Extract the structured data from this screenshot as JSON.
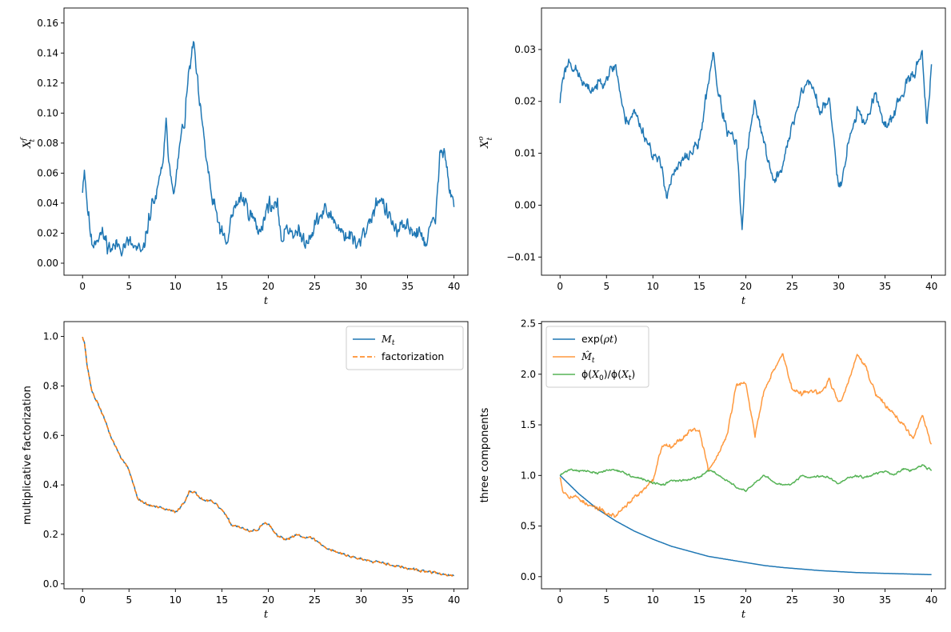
{
  "figure": {
    "layout": "2x2 subplots"
  },
  "chart_data": [
    {
      "id": "top_left",
      "type": "line",
      "xlabel": "t",
      "ylabel": {
        "base": "X",
        "sub": "t",
        "sup": "f"
      },
      "xlim": [
        -2,
        41.5
      ],
      "ylim": [
        -0.008,
        0.17
      ],
      "xticks": [
        0,
        5,
        10,
        15,
        20,
        25,
        30,
        35,
        40
      ],
      "yticks": [
        0.0,
        0.02,
        0.04,
        0.06,
        0.08,
        0.1,
        0.12,
        0.14,
        0.16
      ],
      "ytick_labels": [
        "0.00",
        "0.02",
        "0.04",
        "0.06",
        "0.08",
        "0.10",
        "0.12",
        "0.14",
        "0.16"
      ],
      "legend": null,
      "series": [
        {
          "color": "#1f77b4",
          "style": "solid",
          "noise": 0.011,
          "seed": 11,
          "x": [
            0,
            0.2,
            0.5,
            1,
            1.5,
            2,
            3,
            4,
            5,
            6,
            6.5,
            7,
            7.5,
            8,
            8.5,
            9,
            9.5,
            10,
            10.5,
            11,
            11.5,
            12,
            12.5,
            13,
            14,
            15,
            15.5,
            16,
            17,
            18,
            19,
            19.5,
            20,
            21,
            21.5,
            22,
            23,
            24,
            25,
            26,
            27,
            28,
            29,
            29.5,
            30,
            31,
            32,
            33,
            34,
            35,
            36,
            37,
            38,
            38.5,
            39,
            39.5,
            40
          ],
          "y": [
            0.05,
            0.065,
            0.04,
            0.012,
            0.018,
            0.02,
            0.01,
            0.012,
            0.013,
            0.008,
            0.005,
            0.025,
            0.04,
            0.045,
            0.06,
            0.09,
            0.06,
            0.05,
            0.08,
            0.095,
            0.13,
            0.145,
            0.11,
            0.085,
            0.04,
            0.02,
            0.01,
            0.03,
            0.045,
            0.035,
            0.02,
            0.03,
            0.04,
            0.035,
            0.015,
            0.025,
            0.02,
            0.015,
            0.025,
            0.035,
            0.03,
            0.02,
            0.018,
            0.01,
            0.015,
            0.03,
            0.045,
            0.03,
            0.02,
            0.025,
            0.02,
            0.015,
            0.03,
            0.07,
            0.08,
            0.05,
            0.04
          ]
        }
      ]
    },
    {
      "id": "top_right",
      "type": "line",
      "xlabel": "t",
      "ylabel": {
        "base": "X",
        "sub": "t",
        "sup": "o"
      },
      "xlim": [
        -2,
        41.5
      ],
      "ylim": [
        -0.0135,
        0.038
      ],
      "xticks": [
        0,
        5,
        10,
        15,
        20,
        25,
        30,
        35,
        40
      ],
      "yticks": [
        -0.01,
        0.0,
        0.01,
        0.02,
        0.03
      ],
      "ytick_labels": [
        "−0.01",
        "0.00",
        "0.01",
        "0.02",
        "0.03"
      ],
      "legend": null,
      "series": [
        {
          "color": "#1f77b4",
          "style": "solid",
          "noise": 0.0022,
          "seed": 23,
          "x": [
            0,
            0.3,
            1,
            2,
            3,
            4,
            5,
            6,
            7,
            8,
            9,
            10,
            11,
            11.5,
            12,
            13,
            14,
            15,
            16,
            16.5,
            17,
            18,
            19,
            19.6,
            20,
            21,
            22,
            23,
            24,
            25,
            26,
            27,
            28,
            29,
            30,
            30.5,
            31,
            32,
            33,
            34,
            35,
            36,
            37,
            38,
            39,
            39.5,
            40
          ],
          "y": [
            0.02,
            0.025,
            0.028,
            0.025,
            0.022,
            0.023,
            0.025,
            0.027,
            0.016,
            0.018,
            0.014,
            0.01,
            0.007,
            0.002,
            0.005,
            0.008,
            0.01,
            0.012,
            0.024,
            0.03,
            0.022,
            0.014,
            0.012,
            -0.005,
            0.008,
            0.02,
            0.012,
            0.004,
            0.008,
            0.015,
            0.022,
            0.024,
            0.018,
            0.02,
            0.004,
            0.006,
            0.012,
            0.018,
            0.016,
            0.022,
            0.014,
            0.018,
            0.022,
            0.025,
            0.03,
            0.015,
            0.026
          ]
        }
      ]
    },
    {
      "id": "bottom_left",
      "type": "line",
      "xlabel": "t",
      "ylabel": {
        "text": "multiplicative factorization"
      },
      "xlim": [
        -2,
        41.5
      ],
      "ylim": [
        -0.02,
        1.06
      ],
      "xticks": [
        0,
        5,
        10,
        15,
        20,
        25,
        30,
        35,
        40
      ],
      "yticks": [
        0.0,
        0.2,
        0.4,
        0.6,
        0.8,
        1.0
      ],
      "ytick_labels": [
        "0.0",
        "0.2",
        "0.4",
        "0.6",
        "0.8",
        "1.0"
      ],
      "legend": {
        "loc": "upper right",
        "entries": [
          "M_t",
          "factorization"
        ]
      },
      "series": [
        {
          "name": "M_t",
          "color": "#1f77b4",
          "style": "solid",
          "noise": 0.01,
          "seed": 37,
          "x": [
            0,
            0.2,
            0.5,
            1,
            2,
            3,
            4,
            5,
            6,
            7,
            8,
            9,
            10,
            11,
            11.5,
            12,
            13,
            14,
            15,
            16,
            17,
            18,
            19,
            19.5,
            20,
            21,
            22,
            23,
            24,
            25,
            26,
            28,
            30,
            32,
            34,
            36,
            38,
            40
          ],
          "y": [
            1.0,
            0.98,
            0.88,
            0.78,
            0.7,
            0.6,
            0.52,
            0.46,
            0.34,
            0.32,
            0.31,
            0.3,
            0.29,
            0.33,
            0.38,
            0.37,
            0.34,
            0.33,
            0.3,
            0.24,
            0.23,
            0.21,
            0.22,
            0.25,
            0.24,
            0.19,
            0.18,
            0.2,
            0.19,
            0.18,
            0.15,
            0.12,
            0.1,
            0.09,
            0.07,
            0.055,
            0.045,
            0.03
          ]
        },
        {
          "name": "factorization",
          "color": "#ff7f0e",
          "style": "dashed",
          "noise": 0.01,
          "seed": 37,
          "x": [
            0,
            0.2,
            0.5,
            1,
            2,
            3,
            4,
            5,
            6,
            7,
            8,
            9,
            10,
            11,
            11.5,
            12,
            13,
            14,
            15,
            16,
            17,
            18,
            19,
            19.5,
            20,
            21,
            22,
            23,
            24,
            25,
            26,
            28,
            30,
            32,
            34,
            36,
            38,
            40
          ],
          "y": [
            1.0,
            0.98,
            0.88,
            0.78,
            0.7,
            0.6,
            0.52,
            0.46,
            0.34,
            0.32,
            0.31,
            0.3,
            0.29,
            0.33,
            0.38,
            0.37,
            0.34,
            0.33,
            0.3,
            0.24,
            0.23,
            0.21,
            0.22,
            0.25,
            0.24,
            0.19,
            0.18,
            0.2,
            0.19,
            0.18,
            0.15,
            0.12,
            0.1,
            0.09,
            0.07,
            0.055,
            0.045,
            0.03
          ]
        }
      ]
    },
    {
      "id": "bottom_right",
      "type": "line",
      "xlabel": "t",
      "ylabel": {
        "text": "three components"
      },
      "xlim": [
        -2,
        41.5
      ],
      "ylim": [
        -0.12,
        2.52
      ],
      "xticks": [
        0,
        5,
        10,
        15,
        20,
        25,
        30,
        35,
        40
      ],
      "yticks": [
        0.0,
        0.5,
        1.0,
        1.5,
        2.0,
        2.5
      ],
      "ytick_labels": [
        "0.0",
        "0.5",
        "1.0",
        "1.5",
        "2.0",
        "2.5"
      ],
      "legend": {
        "loc": "upper left",
        "entries": [
          "exp(ρt)",
          "M̂_t",
          "ϕ(X_0)/ϕ(X_t)"
        ]
      },
      "series": [
        {
          "name": "exp(ρt)",
          "color": "#1f77b4",
          "style": "solid",
          "noise": 0,
          "seed": 1,
          "x": [
            0,
            2,
            4,
            6,
            8,
            10,
            12,
            14,
            16,
            18,
            20,
            22,
            24,
            26,
            28,
            30,
            32,
            34,
            36,
            38,
            40
          ],
          "y": [
            1.0,
            0.82,
            0.67,
            0.55,
            0.45,
            0.37,
            0.3,
            0.25,
            0.2,
            0.17,
            0.14,
            0.11,
            0.09,
            0.075,
            0.06,
            0.05,
            0.04,
            0.035,
            0.03,
            0.025,
            0.02
          ]
        },
        {
          "name": "M̂_t",
          "color": "#ff7f0e",
          "style": "solid",
          "opacity": 0.8,
          "noise": 0.04,
          "seed": 53,
          "x": [
            0,
            0.3,
            1,
            2,
            3,
            4,
            5,
            6,
            7,
            8,
            9,
            10,
            11,
            12,
            13,
            14,
            15,
            16,
            17,
            18,
            19,
            20,
            21,
            22,
            23,
            24,
            25,
            26,
            27,
            28,
            29,
            30,
            31,
            32,
            33,
            34,
            35,
            36,
            37,
            38,
            39,
            40
          ],
          "y": [
            1.0,
            0.85,
            0.8,
            0.78,
            0.7,
            0.68,
            0.62,
            0.6,
            0.7,
            0.78,
            0.85,
            0.95,
            1.3,
            1.3,
            1.35,
            1.45,
            1.45,
            1.05,
            1.2,
            1.4,
            1.9,
            1.9,
            1.4,
            1.85,
            2.05,
            2.2,
            1.85,
            1.8,
            1.85,
            1.8,
            1.95,
            1.7,
            1.9,
            2.2,
            2.05,
            1.8,
            1.7,
            1.6,
            1.5,
            1.35,
            1.6,
            1.3
          ]
        },
        {
          "name": "ϕ(X_0)/ϕ(X_t)",
          "color": "#2ca02c",
          "style": "solid",
          "opacity": 0.8,
          "noise": 0.02,
          "seed": 71,
          "x": [
            0,
            1,
            2,
            3,
            4,
            5,
            6,
            7,
            8,
            9,
            10,
            11,
            12,
            13,
            14,
            15,
            16,
            16.5,
            17,
            18,
            19,
            20,
            21,
            22,
            23,
            24,
            25,
            26,
            27,
            28,
            29,
            30,
            31,
            32,
            33,
            34,
            35,
            36,
            37,
            38,
            39,
            40
          ],
          "y": [
            1.0,
            1.06,
            1.05,
            1.04,
            1.02,
            1.05,
            1.06,
            1.02,
            0.98,
            0.96,
            0.93,
            0.9,
            0.95,
            0.95,
            0.96,
            0.98,
            1.05,
            1.05,
            1.0,
            0.95,
            0.88,
            0.85,
            0.92,
            1.0,
            0.93,
            0.9,
            0.92,
            1.0,
            0.98,
            1.0,
            0.98,
            0.92,
            0.98,
            1.0,
            0.98,
            1.02,
            1.04,
            1.0,
            1.06,
            1.05,
            1.1,
            1.05
          ]
        }
      ]
    }
  ]
}
